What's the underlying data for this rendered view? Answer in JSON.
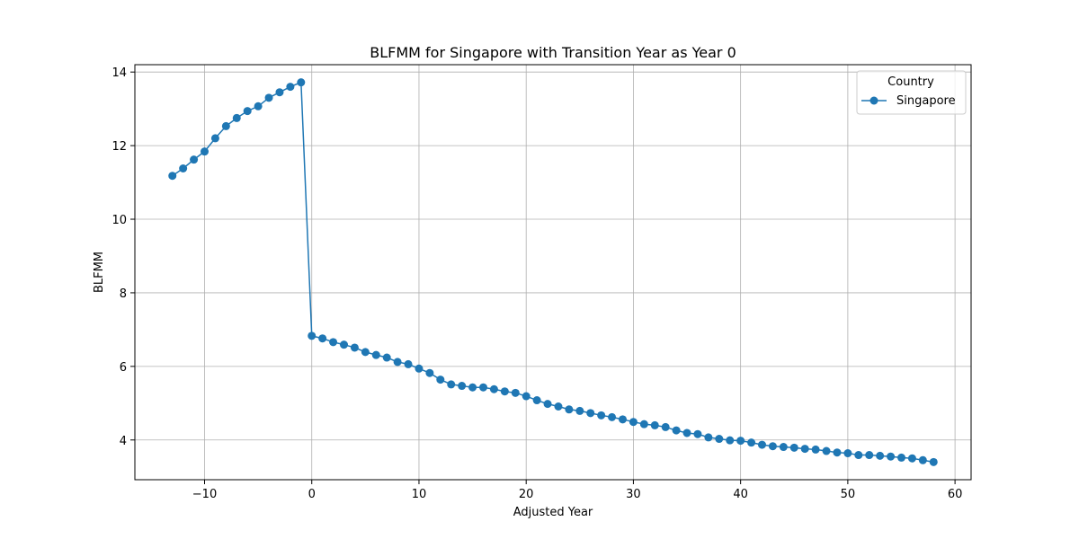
{
  "chart_data": {
    "type": "line",
    "title": "BLFMM for Singapore with Transition Year as Year 0",
    "xlabel": "Adjusted Year",
    "ylabel": "BLFMM",
    "xlim": [
      -16.5,
      61.5
    ],
    "ylim": [
      2.92,
      14.2
    ],
    "x_ticks": [
      -10,
      0,
      10,
      20,
      30,
      40,
      50,
      60
    ],
    "x_tick_labels": [
      "−10",
      "0",
      "10",
      "20",
      "30",
      "40",
      "50",
      "60"
    ],
    "y_ticks": [
      4,
      6,
      8,
      10,
      12,
      14
    ],
    "y_tick_labels": [
      "4",
      "6",
      "8",
      "10",
      "12",
      "14"
    ],
    "grid": true,
    "legend": {
      "title": "Country",
      "placement": "top-right"
    },
    "colors": {
      "series": "#1f77b4"
    },
    "series": [
      {
        "name": "Singapore",
        "x": [
          -13,
          -12,
          -11,
          -10,
          -9,
          -8,
          -7,
          -6,
          -5,
          -4,
          -3,
          -2,
          -1,
          0,
          1,
          2,
          3,
          4,
          5,
          6,
          7,
          8,
          9,
          10,
          11,
          12,
          13,
          14,
          15,
          16,
          17,
          18,
          19,
          20,
          21,
          22,
          23,
          24,
          25,
          26,
          27,
          28,
          29,
          30,
          31,
          32,
          33,
          34,
          35,
          36,
          37,
          38,
          39,
          40,
          41,
          42,
          43,
          44,
          45,
          46,
          47,
          48,
          49,
          50,
          51,
          52,
          53,
          54,
          55,
          56,
          57,
          58
        ],
        "y": [
          11.18,
          11.38,
          11.62,
          11.84,
          12.2,
          12.53,
          12.75,
          12.94,
          13.07,
          13.3,
          13.45,
          13.6,
          13.72,
          6.83,
          6.76,
          6.66,
          6.59,
          6.51,
          6.39,
          6.31,
          6.24,
          6.12,
          6.06,
          5.94,
          5.82,
          5.64,
          5.51,
          5.47,
          5.43,
          5.43,
          5.38,
          5.32,
          5.28,
          5.19,
          5.08,
          4.98,
          4.91,
          4.83,
          4.79,
          4.73,
          4.67,
          4.62,
          4.56,
          4.49,
          4.43,
          4.4,
          4.35,
          4.26,
          4.19,
          4.16,
          4.07,
          4.03,
          3.99,
          3.98,
          3.93,
          3.87,
          3.83,
          3.81,
          3.79,
          3.76,
          3.74,
          3.7,
          3.66,
          3.64,
          3.59,
          3.59,
          3.57,
          3.55,
          3.52,
          3.5,
          3.45,
          3.4
        ]
      }
    ]
  }
}
